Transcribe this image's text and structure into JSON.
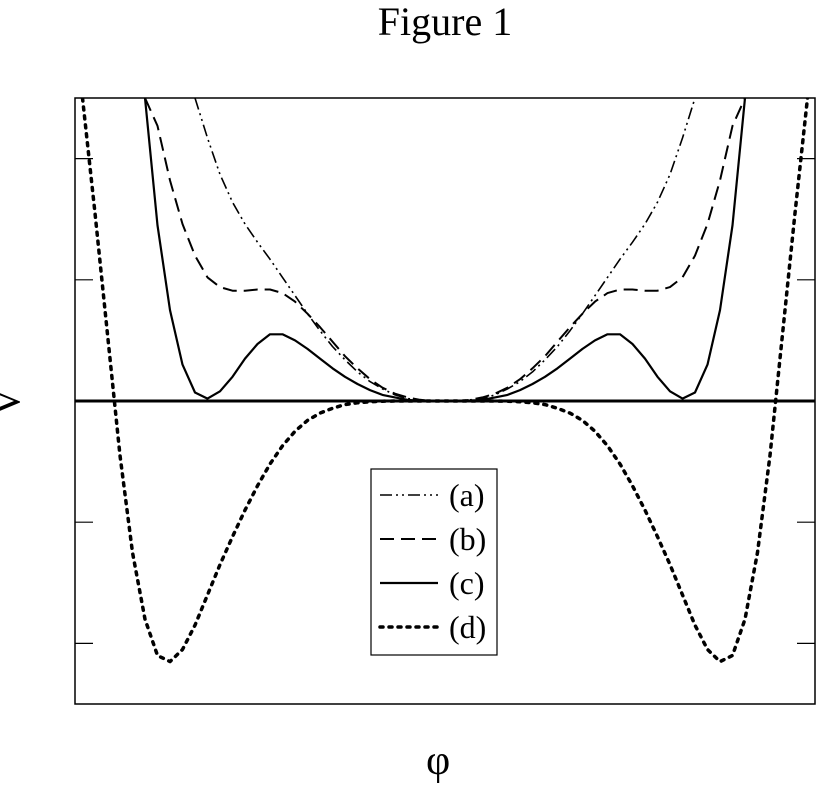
{
  "chart_data": {
    "type": "line",
    "title": "Figure 1",
    "xlabel": "φ",
    "ylabel": "V",
    "xlim": [
      -1.48,
      1.48
    ],
    "ylim": [
      -2.5,
      2.5
    ],
    "yticks": [
      -2,
      -1,
      0,
      1,
      2
    ],
    "xticks": [],
    "legend_position": "bottom-center",
    "series": [
      {
        "name": "(a)",
        "style": "dash-dot-dot",
        "x": [
          -1.0,
          -0.95,
          -0.9,
          -0.85,
          -0.8,
          -0.75,
          -0.7,
          -0.65,
          -0.6,
          -0.55,
          -0.5,
          -0.45,
          -0.4,
          -0.35,
          -0.3,
          -0.25,
          -0.2,
          -0.15,
          -0.1,
          -0.05,
          0.0,
          0.05,
          0.1,
          0.15,
          0.2,
          0.25,
          0.3,
          0.35,
          0.4,
          0.45,
          0.5,
          0.55,
          0.6,
          0.65,
          0.7,
          0.75,
          0.8,
          0.85,
          0.9,
          0.95,
          1.0
        ],
        "values": [
          2.5,
          2.17,
          1.87,
          1.64,
          1.46,
          1.31,
          1.17,
          1.02,
          0.87,
          0.72,
          0.58,
          0.45,
          0.34,
          0.24,
          0.16,
          0.1,
          0.05,
          0.02,
          0.01,
          0.0,
          0.0,
          0.0,
          0.01,
          0.02,
          0.05,
          0.1,
          0.16,
          0.24,
          0.34,
          0.45,
          0.58,
          0.72,
          0.87,
          1.02,
          1.17,
          1.31,
          1.46,
          1.64,
          1.87,
          2.17,
          2.5
        ]
      },
      {
        "name": "(b)",
        "style": "dashed",
        "x": [
          -1.2,
          -1.15,
          -1.1,
          -1.05,
          -1.0,
          -0.95,
          -0.9,
          -0.85,
          -0.8,
          -0.75,
          -0.7,
          -0.65,
          -0.6,
          -0.55,
          -0.5,
          -0.45,
          -0.4,
          -0.35,
          -0.3,
          -0.25,
          -0.2,
          -0.15,
          -0.1,
          -0.05,
          0.0,
          0.05,
          0.1,
          0.15,
          0.2,
          0.25,
          0.3,
          0.35,
          0.4,
          0.45,
          0.5,
          0.55,
          0.6,
          0.65,
          0.7,
          0.75,
          0.8,
          0.85,
          0.9,
          0.95,
          1.0,
          1.05,
          1.1,
          1.15,
          1.2
        ],
        "values": [
          2.5,
          2.27,
          1.82,
          1.46,
          1.2,
          1.02,
          0.94,
          0.91,
          0.91,
          0.92,
          0.92,
          0.89,
          0.82,
          0.72,
          0.61,
          0.49,
          0.37,
          0.27,
          0.18,
          0.11,
          0.06,
          0.03,
          0.01,
          0.0,
          0.0,
          0.0,
          0.01,
          0.03,
          0.06,
          0.11,
          0.18,
          0.27,
          0.37,
          0.49,
          0.61,
          0.72,
          0.82,
          0.89,
          0.92,
          0.92,
          0.91,
          0.91,
          0.94,
          1.02,
          1.2,
          1.46,
          1.82,
          2.27,
          2.5
        ]
      },
      {
        "name": "(c)",
        "style": "solid",
        "x": [
          -1.2,
          -1.15,
          -1.1,
          -1.05,
          -1.0,
          -0.95,
          -0.9,
          -0.85,
          -0.8,
          -0.75,
          -0.7,
          -0.65,
          -0.6,
          -0.55,
          -0.5,
          -0.45,
          -0.4,
          -0.35,
          -0.3,
          -0.25,
          -0.2,
          -0.15,
          -0.1,
          -0.05,
          0.0,
          0.05,
          0.1,
          0.15,
          0.2,
          0.25,
          0.3,
          0.35,
          0.4,
          0.45,
          0.5,
          0.55,
          0.6,
          0.65,
          0.7,
          0.75,
          0.8,
          0.85,
          0.9,
          0.95,
          1.0,
          1.05,
          1.1,
          1.15,
          1.2
        ],
        "values": [
          2.5,
          1.45,
          0.75,
          0.3,
          0.07,
          0.02,
          0.08,
          0.2,
          0.35,
          0.47,
          0.55,
          0.55,
          0.5,
          0.43,
          0.35,
          0.27,
          0.2,
          0.14,
          0.09,
          0.05,
          0.03,
          0.01,
          0.0,
          0.0,
          0.0,
          0.0,
          0.0,
          0.01,
          0.03,
          0.05,
          0.09,
          0.14,
          0.2,
          0.27,
          0.35,
          0.43,
          0.5,
          0.55,
          0.55,
          0.47,
          0.35,
          0.2,
          0.08,
          0.02,
          0.07,
          0.3,
          0.75,
          1.45,
          2.5
        ]
      },
      {
        "name": "(d)",
        "style": "dotted",
        "x": [
          -1.45,
          -1.4,
          -1.35,
          -1.3,
          -1.25,
          -1.2,
          -1.15,
          -1.1,
          -1.05,
          -1.0,
          -0.95,
          -0.9,
          -0.85,
          -0.8,
          -0.75,
          -0.7,
          -0.65,
          -0.6,
          -0.55,
          -0.5,
          -0.45,
          -0.4,
          -0.35,
          -0.3,
          -0.25,
          -0.2,
          -0.15,
          -0.1,
          -0.05,
          0.0,
          0.05,
          0.1,
          0.15,
          0.2,
          0.25,
          0.3,
          0.35,
          0.4,
          0.45,
          0.5,
          0.55,
          0.6,
          0.65,
          0.7,
          0.75,
          0.8,
          0.85,
          0.9,
          0.95,
          1.0,
          1.05,
          1.1,
          1.15,
          1.2,
          1.25,
          1.3,
          1.35,
          1.4,
          1.45
        ],
        "values": [
          2.5,
          1.55,
          0.55,
          -0.45,
          -1.25,
          -1.8,
          -2.1,
          -2.15,
          -2.05,
          -1.85,
          -1.6,
          -1.35,
          -1.12,
          -0.9,
          -0.7,
          -0.52,
          -0.37,
          -0.25,
          -0.16,
          -0.1,
          -0.06,
          -0.03,
          -0.015,
          -0.006,
          -0.002,
          0.0,
          0.0,
          0.0,
          0.0,
          0.0,
          0.0,
          0.0,
          0.0,
          0.0,
          -0.002,
          -0.006,
          -0.015,
          -0.03,
          -0.06,
          -0.1,
          -0.16,
          -0.25,
          -0.37,
          -0.52,
          -0.7,
          -0.9,
          -1.12,
          -1.35,
          -1.6,
          -1.85,
          -2.05,
          -2.15,
          -2.1,
          -1.8,
          -1.25,
          -0.45,
          0.55,
          1.55,
          2.5
        ]
      }
    ]
  }
}
